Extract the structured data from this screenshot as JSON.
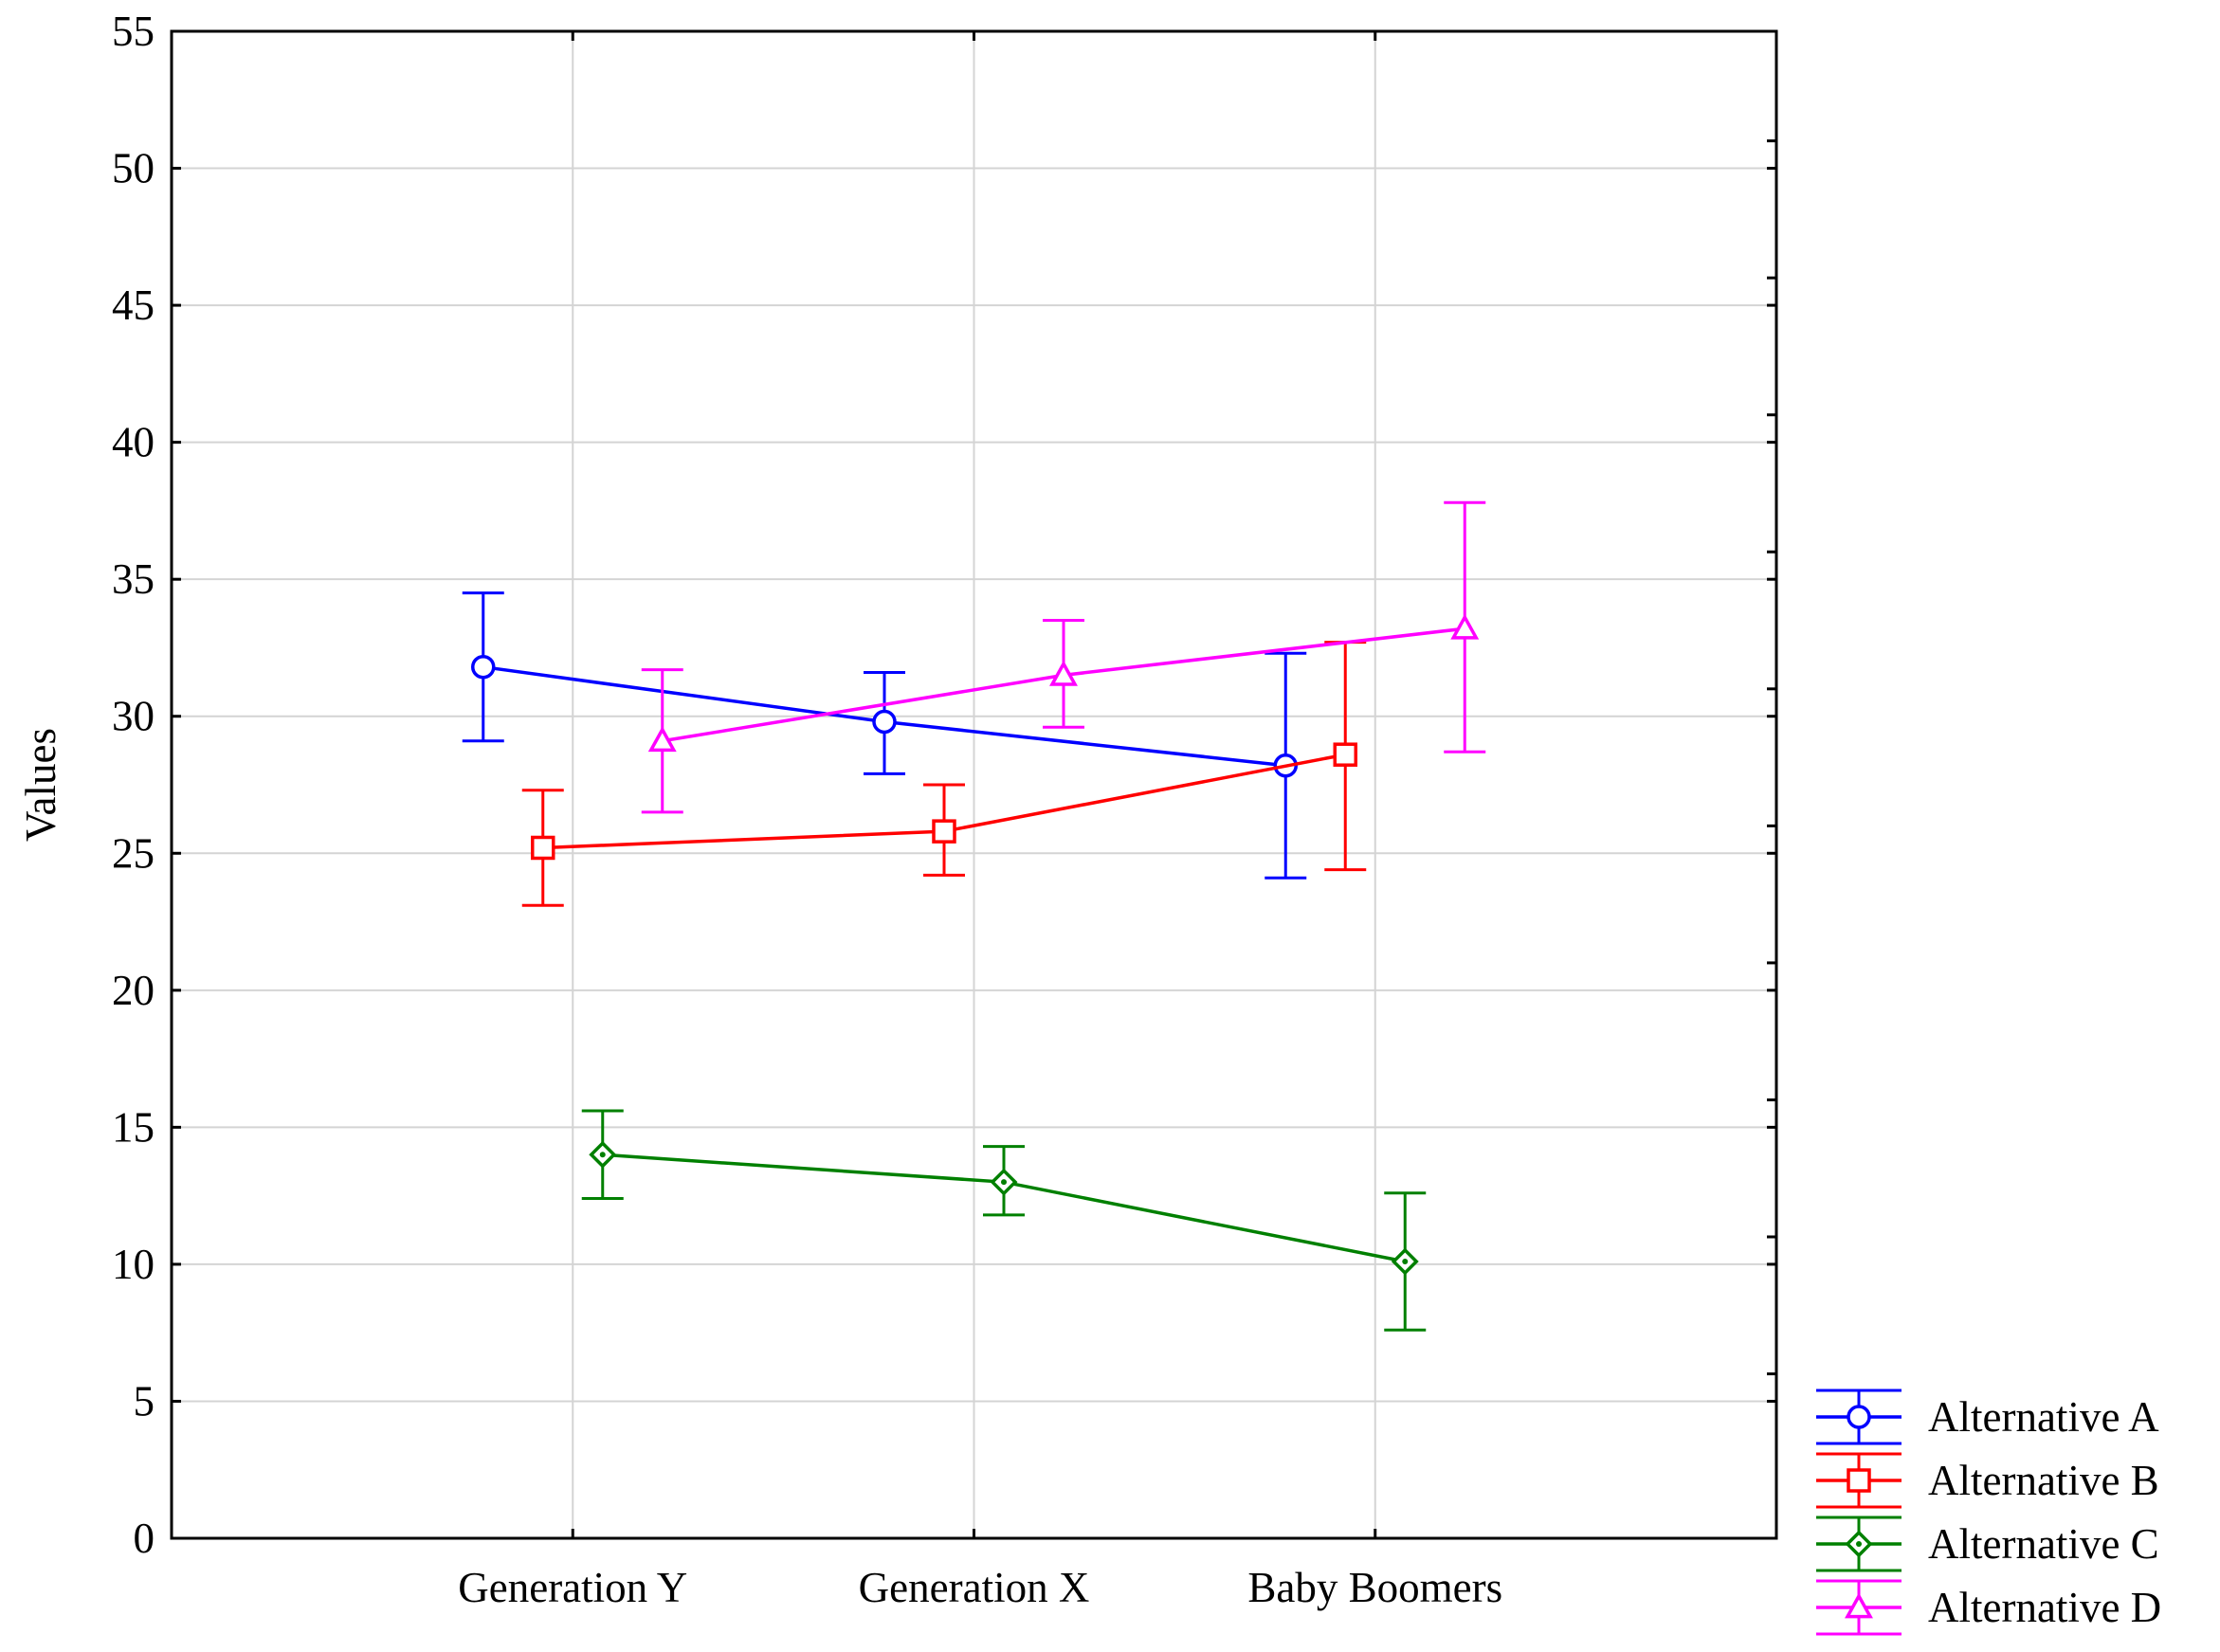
{
  "chart_data": {
    "type": "line",
    "title": "",
    "xlabel": "",
    "ylabel": "Values",
    "categories": [
      "Generation Y",
      "Generation X",
      "Baby Boomers"
    ],
    "ylim": [
      0,
      55
    ],
    "yticks": [
      0,
      5,
      10,
      15,
      20,
      25,
      30,
      35,
      40,
      45,
      50,
      55
    ],
    "ytick_labels": [
      "0",
      "5",
      "10",
      "15",
      "20",
      "25",
      "30",
      "35",
      "40",
      "45",
      "50",
      "55"
    ],
    "grid": true,
    "legend_position": "bottom-right outside",
    "error_bars": true,
    "series": [
      {
        "name": "Alternative A",
        "color": "#0000ff",
        "marker": "circle",
        "values": [
          31.8,
          29.8,
          28.2
        ],
        "lower": [
          29.1,
          27.9,
          24.1
        ],
        "upper": [
          34.5,
          31.6,
          32.3
        ]
      },
      {
        "name": "Alternative B",
        "color": "#ff0000",
        "marker": "square",
        "values": [
          25.2,
          25.8,
          28.6
        ],
        "lower": [
          23.1,
          24.2,
          24.4
        ],
        "upper": [
          27.3,
          27.5,
          32.7
        ]
      },
      {
        "name": "Alternative C",
        "color": "#008000",
        "marker": "diamond",
        "values": [
          14.0,
          13.0,
          10.1
        ],
        "lower": [
          12.4,
          11.8,
          7.6
        ],
        "upper": [
          15.6,
          14.3,
          12.6
        ]
      },
      {
        "name": "Alternative D",
        "color": "#ff00ff",
        "marker": "triangle",
        "values": [
          29.1,
          31.5,
          33.2
        ],
        "lower": [
          26.5,
          29.6,
          28.7
        ],
        "upper": [
          31.7,
          33.5,
          37.8
        ]
      }
    ]
  }
}
